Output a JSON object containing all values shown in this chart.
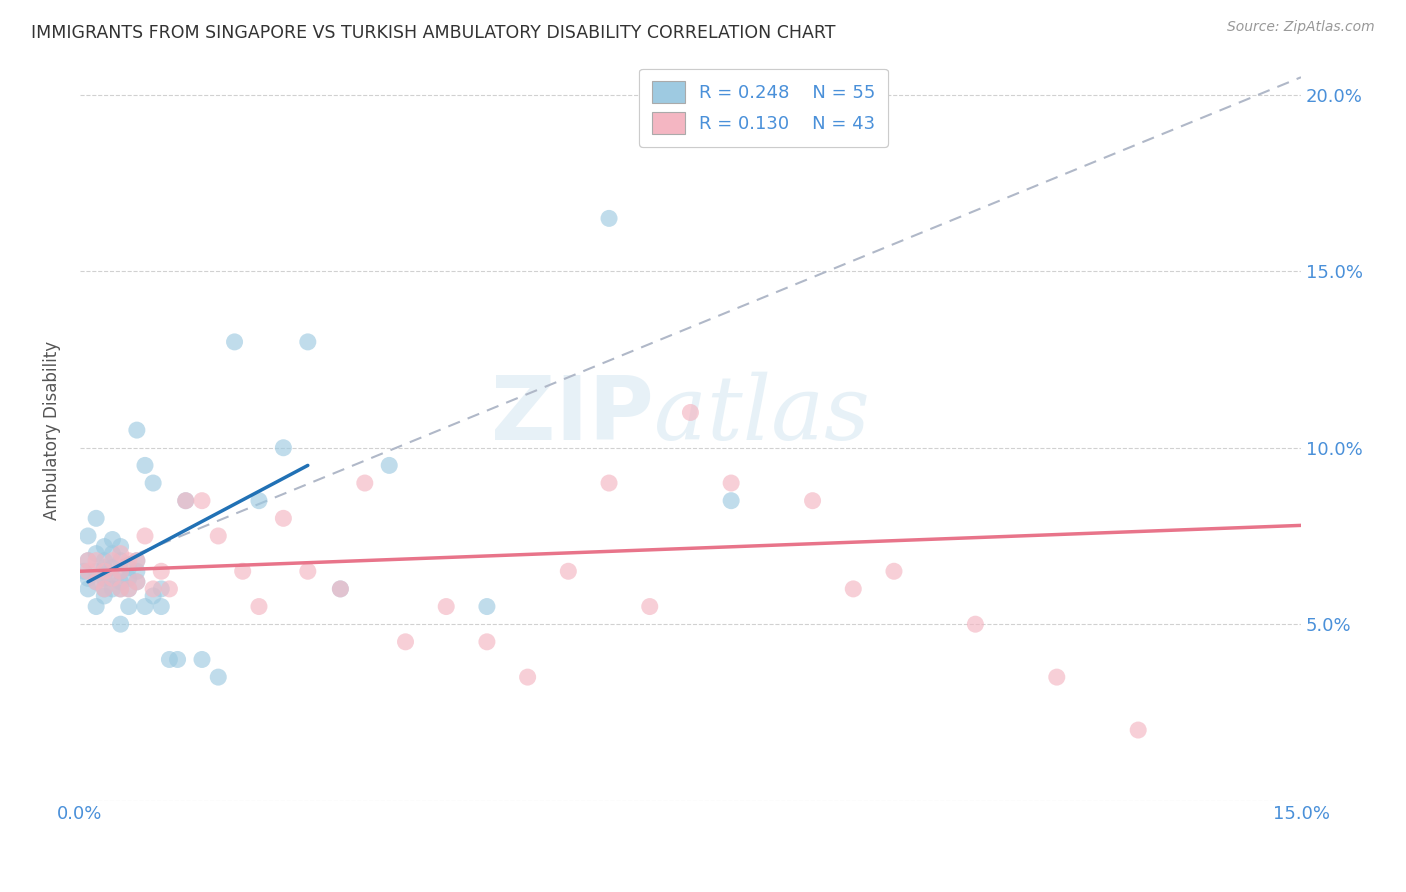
{
  "title": "IMMIGRANTS FROM SINGAPORE VS TURKISH AMBULATORY DISABILITY CORRELATION CHART",
  "source": "Source: ZipAtlas.com",
  "ylabel": "Ambulatory Disability",
  "watermark_zip": "ZIP",
  "watermark_atlas": "atlas",
  "xlim": [
    0.0,
    0.15
  ],
  "ylim": [
    0.0,
    0.21
  ],
  "xtick_vals": [
    0.0,
    0.03,
    0.06,
    0.09,
    0.12,
    0.15
  ],
  "ytick_vals": [
    0.0,
    0.05,
    0.1,
    0.15,
    0.2
  ],
  "legend_blue_r": "0.248",
  "legend_blue_n": "55",
  "legend_pink_r": "0.130",
  "legend_pink_n": "43",
  "blue_color": "#9ecae1",
  "pink_color": "#f4b6c2",
  "blue_line_color": "#2171b5",
  "pink_line_color": "#e8748a",
  "gray_dash_color": "#b0b8c8",
  "tick_color": "#4a90d9",
  "blue_scatter": {
    "x": [
      0.0005,
      0.001,
      0.001,
      0.001,
      0.001,
      0.002,
      0.002,
      0.002,
      0.002,
      0.002,
      0.003,
      0.003,
      0.003,
      0.003,
      0.003,
      0.003,
      0.004,
      0.004,
      0.004,
      0.004,
      0.004,
      0.005,
      0.005,
      0.005,
      0.005,
      0.005,
      0.005,
      0.006,
      0.006,
      0.006,
      0.006,
      0.007,
      0.007,
      0.007,
      0.007,
      0.008,
      0.008,
      0.009,
      0.009,
      0.01,
      0.01,
      0.011,
      0.012,
      0.013,
      0.015,
      0.017,
      0.019,
      0.022,
      0.025,
      0.028,
      0.032,
      0.038,
      0.05,
      0.065,
      0.08
    ],
    "y": [
      0.065,
      0.063,
      0.068,
      0.075,
      0.06,
      0.062,
      0.065,
      0.07,
      0.055,
      0.08,
      0.06,
      0.063,
      0.066,
      0.068,
      0.072,
      0.058,
      0.06,
      0.063,
      0.066,
      0.07,
      0.074,
      0.06,
      0.062,
      0.065,
      0.068,
      0.072,
      0.05,
      0.06,
      0.063,
      0.066,
      0.055,
      0.062,
      0.065,
      0.068,
      0.105,
      0.055,
      0.095,
      0.058,
      0.09,
      0.06,
      0.055,
      0.04,
      0.04,
      0.085,
      0.04,
      0.035,
      0.13,
      0.085,
      0.1,
      0.13,
      0.06,
      0.095,
      0.055,
      0.165,
      0.085
    ]
  },
  "pink_scatter": {
    "x": [
      0.001,
      0.001,
      0.002,
      0.002,
      0.003,
      0.003,
      0.004,
      0.004,
      0.005,
      0.005,
      0.005,
      0.006,
      0.006,
      0.007,
      0.007,
      0.008,
      0.009,
      0.01,
      0.011,
      0.013,
      0.015,
      0.017,
      0.02,
      0.022,
      0.025,
      0.028,
      0.032,
      0.035,
      0.04,
      0.045,
      0.05,
      0.055,
      0.06,
      0.065,
      0.07,
      0.075,
      0.08,
      0.09,
      0.095,
      0.1,
      0.11,
      0.12,
      0.13
    ],
    "y": [
      0.065,
      0.068,
      0.062,
      0.068,
      0.06,
      0.065,
      0.063,
      0.068,
      0.06,
      0.065,
      0.07,
      0.06,
      0.068,
      0.062,
      0.068,
      0.075,
      0.06,
      0.065,
      0.06,
      0.085,
      0.085,
      0.075,
      0.065,
      0.055,
      0.08,
      0.065,
      0.06,
      0.09,
      0.045,
      0.055,
      0.045,
      0.035,
      0.065,
      0.09,
      0.055,
      0.11,
      0.09,
      0.085,
      0.06,
      0.065,
      0.05,
      0.035,
      0.02
    ]
  },
  "blue_line_x": [
    0.001,
    0.028
  ],
  "blue_line_y": [
    0.062,
    0.095
  ],
  "pink_line_x": [
    0.0,
    0.15
  ],
  "pink_line_y": [
    0.065,
    0.078
  ],
  "gray_line_x": [
    0.005,
    0.15
  ],
  "gray_line_y": [
    0.068,
    0.205
  ]
}
